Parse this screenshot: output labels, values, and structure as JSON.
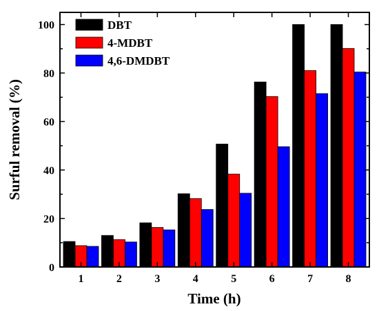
{
  "chart_data": {
    "type": "bar",
    "xlabel": "Time (h)",
    "ylabel": "Surful removal (%)",
    "ylim": [
      0,
      105
    ],
    "yticks": [
      0,
      20,
      40,
      60,
      80,
      100
    ],
    "categories": [
      "1",
      "2",
      "3",
      "4",
      "5",
      "6",
      "7",
      "8"
    ],
    "series": [
      {
        "name": "DBT",
        "color": "#000000",
        "values": [
          10.5,
          13,
          18.2,
          30.2,
          50.7,
          76.3,
          100,
          100
        ]
      },
      {
        "name": "4-MDBT",
        "color": "#ff0000",
        "values": [
          8.8,
          11.3,
          16.3,
          28.2,
          38.3,
          70.3,
          81,
          90.1
        ]
      },
      {
        "name": "4,6-DMDBT",
        "color": "#0000ff",
        "values": [
          8.5,
          10.3,
          15.3,
          23.7,
          30.4,
          49.6,
          71.5,
          80.4
        ]
      }
    ],
    "legend_position": "top-left",
    "grid": false
  }
}
